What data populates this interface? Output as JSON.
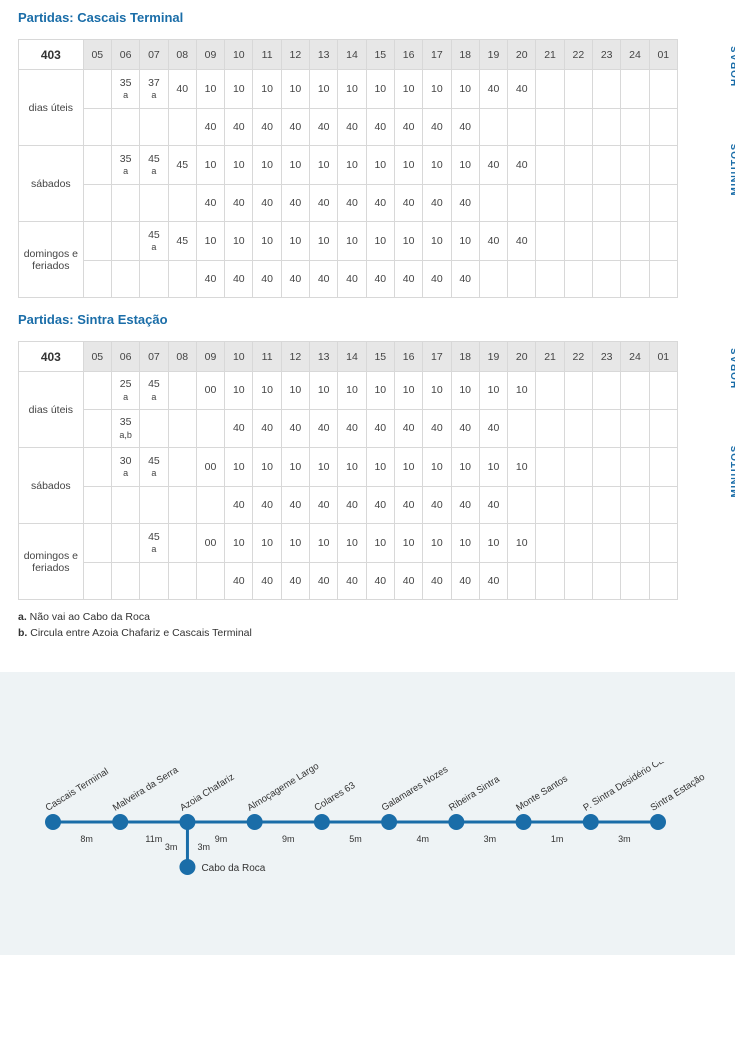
{
  "route_number": "403",
  "axis": {
    "horas": "HORAS",
    "minutos": "MINUTOS"
  },
  "hours": [
    "05",
    "06",
    "07",
    "08",
    "09",
    "10",
    "11",
    "12",
    "13",
    "14",
    "15",
    "16",
    "17",
    "18",
    "19",
    "20",
    "21",
    "22",
    "23",
    "24",
    "01"
  ],
  "sections": [
    {
      "title": "Partidas: Cascais Terminal",
      "groups": [
        {
          "label": "dias úteis",
          "rows": [
            [
              "",
              "35 a",
              "37 a",
              "40",
              "10",
              "10",
              "10",
              "10",
              "10",
              "10",
              "10",
              "10",
              "10",
              "10",
              "40",
              "40",
              "",
              "",
              "",
              "",
              ""
            ],
            [
              "",
              "",
              "",
              "",
              "40",
              "40",
              "40",
              "40",
              "40",
              "40",
              "40",
              "40",
              "40",
              "40",
              "",
              "",
              "",
              "",
              "",
              "",
              ""
            ]
          ]
        },
        {
          "label": "sábados",
          "rows": [
            [
              "",
              "35 a",
              "45 a",
              "45",
              "10",
              "10",
              "10",
              "10",
              "10",
              "10",
              "10",
              "10",
              "10",
              "10",
              "40",
              "40",
              "",
              "",
              "",
              "",
              ""
            ],
            [
              "",
              "",
              "",
              "",
              "40",
              "40",
              "40",
              "40",
              "40",
              "40",
              "40",
              "40",
              "40",
              "40",
              "",
              "",
              "",
              "",
              "",
              "",
              ""
            ]
          ]
        },
        {
          "label": "domingos e feriados",
          "rows": [
            [
              "",
              "",
              "45 a",
              "45",
              "10",
              "10",
              "10",
              "10",
              "10",
              "10",
              "10",
              "10",
              "10",
              "10",
              "40",
              "40",
              "",
              "",
              "",
              "",
              ""
            ],
            [
              "",
              "",
              "",
              "",
              "40",
              "40",
              "40",
              "40",
              "40",
              "40",
              "40",
              "40",
              "40",
              "40",
              "",
              "",
              "",
              "",
              "",
              "",
              ""
            ]
          ]
        }
      ]
    },
    {
      "title": "Partidas: Sintra Estação",
      "groups": [
        {
          "label": "dias úteis",
          "rows": [
            [
              "",
              "25 a",
              "45 a",
              "",
              "00",
              "10",
              "10",
              "10",
              "10",
              "10",
              "10",
              "10",
              "10",
              "10",
              "10",
              "10",
              "",
              "",
              "",
              "",
              ""
            ],
            [
              "",
              "35 a,b",
              "",
              "",
              "",
              "40",
              "40",
              "40",
              "40",
              "40",
              "40",
              "40",
              "40",
              "40",
              "40",
              "",
              "",
              "",
              "",
              "",
              ""
            ]
          ]
        },
        {
          "label": "sábados",
          "rows": [
            [
              "",
              "30 a",
              "45 a",
              "",
              "00",
              "10",
              "10",
              "10",
              "10",
              "10",
              "10",
              "10",
              "10",
              "10",
              "10",
              "10",
              "",
              "",
              "",
              "",
              ""
            ],
            [
              "",
              "",
              "",
              "",
              "",
              "40",
              "40",
              "40",
              "40",
              "40",
              "40",
              "40",
              "40",
              "40",
              "40",
              "",
              "",
              "",
              "",
              "",
              ""
            ]
          ]
        },
        {
          "label": "domingos e feriados",
          "rows": [
            [
              "",
              "",
              "45 a",
              "",
              "00",
              "10",
              "10",
              "10",
              "10",
              "10",
              "10",
              "10",
              "10",
              "10",
              "10",
              "10",
              "",
              "",
              "",
              "",
              ""
            ],
            [
              "",
              "",
              "",
              "",
              "",
              "40",
              "40",
              "40",
              "40",
              "40",
              "40",
              "40",
              "40",
              "40",
              "40",
              "",
              "",
              "",
              "",
              "",
              ""
            ]
          ]
        }
      ]
    }
  ],
  "notes": [
    "a. Não vai ao Cabo da Roca",
    "b. Circula entre Azoia Chafariz e Cascais Terminal"
  ],
  "diagram": {
    "line_color": "#1a6da8",
    "node_color": "#1a6da8",
    "bg_color": "#eef3f5",
    "main_stops": [
      {
        "name": "Cascais Terminal",
        "seg_label": "8m"
      },
      {
        "name": "Malveira da Serra",
        "seg_label": "11m"
      },
      {
        "name": "Azoia Chafariz",
        "seg_label": "9m"
      },
      {
        "name": "Almoçageme Largo",
        "seg_label": "9m"
      },
      {
        "name": "Colares 63",
        "seg_label": "5m"
      },
      {
        "name": "Galamares Nozes",
        "seg_label": "4m"
      },
      {
        "name": "Ribeira Sintra",
        "seg_label": "3m"
      },
      {
        "name": "Monte Santos",
        "seg_label": "1m"
      },
      {
        "name": "P. Sintra Desidério Cambournac",
        "seg_label": "3m"
      },
      {
        "name": "Sintra Estação",
        "seg_label": ""
      }
    ],
    "branch": {
      "from_index": 2,
      "name": "Cabo da Roca",
      "left_label": "3m",
      "right_label": "3m"
    }
  }
}
